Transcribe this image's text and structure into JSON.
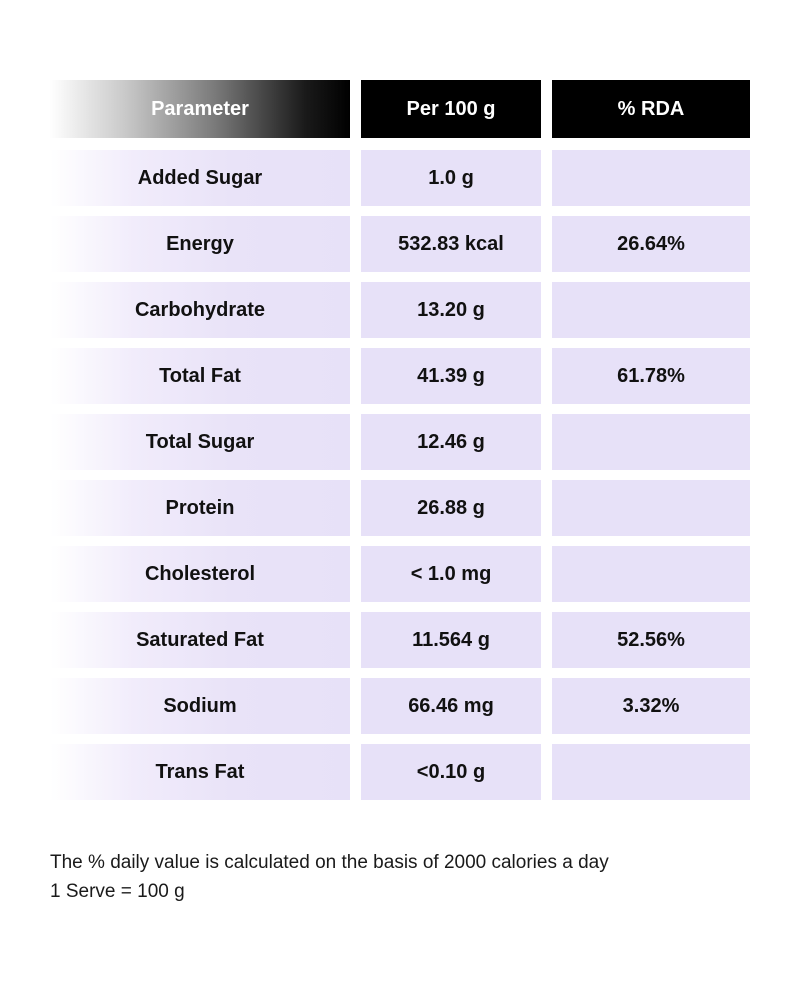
{
  "table": {
    "headers": [
      "Parameter",
      "Per 100 g",
      "% RDA"
    ],
    "rows": [
      {
        "parameter": "Added Sugar",
        "per100g": "1.0 g",
        "rda": ""
      },
      {
        "parameter": "Energy",
        "per100g": "532.83 kcal",
        "rda": "26.64%"
      },
      {
        "parameter": "Carbohydrate",
        "per100g": "13.20 g",
        "rda": ""
      },
      {
        "parameter": "Total Fat",
        "per100g": "41.39 g",
        "rda": "61.78%"
      },
      {
        "parameter": "Total Sugar",
        "per100g": "12.46 g",
        "rda": ""
      },
      {
        "parameter": "Protein",
        "per100g": "26.88 g",
        "rda": ""
      },
      {
        "parameter": "Cholesterol",
        "per100g": "< 1.0 mg",
        "rda": ""
      },
      {
        "parameter": "Saturated Fat",
        "per100g": "11.564 g",
        "rda": "52.56%"
      },
      {
        "parameter": "Sodium",
        "per100g": "66.46 mg",
        "rda": "3.32%"
      },
      {
        "parameter": "Trans Fat",
        "per100g": "<0.10 g",
        "rda": ""
      }
    ]
  },
  "footnote": {
    "line1": "The % daily value is calculated on the basis of 2000 calories a day",
    "line2": "1 Serve = 100 g"
  },
  "colors": {
    "header_bg": "#000000",
    "header_text": "#ffffff",
    "cell_bg": "#e7e1f8"
  }
}
